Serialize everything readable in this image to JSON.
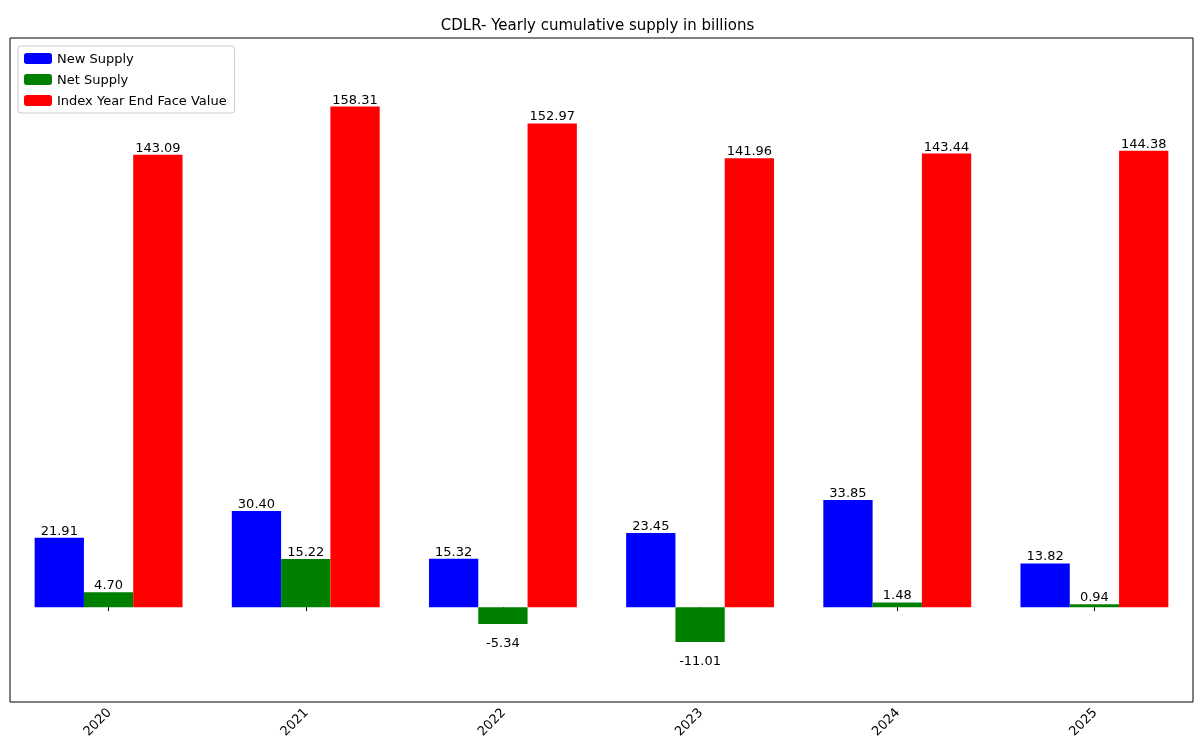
{
  "chart_data": {
    "type": "bar",
    "title": "CDLR- Yearly cumulative supply in billions",
    "categories": [
      "2020",
      "2021",
      "2022",
      "2023",
      "2024",
      "2025"
    ],
    "series": [
      {
        "name": "New Supply",
        "color": "#0000ff",
        "values": [
          21.91,
          30.4,
          15.32,
          23.45,
          33.85,
          13.82
        ],
        "value_labels": [
          "21.91",
          "30.40",
          "15.32",
          "23.45",
          "33.85",
          "13.82"
        ]
      },
      {
        "name": "Net Supply",
        "color": "#008000",
        "values": [
          4.7,
          15.22,
          -5.34,
          -11.01,
          1.48,
          0.94
        ],
        "value_labels": [
          "4.70",
          "15.22",
          "-5.34",
          "-11.01",
          "1.48",
          "0.94"
        ]
      },
      {
        "name": "Index Year End Face Value",
        "color": "#ff0000",
        "values": [
          143.09,
          158.31,
          152.97,
          141.96,
          143.44,
          144.38
        ],
        "value_labels": [
          "143.09",
          "158.31",
          "152.97",
          "141.96",
          "143.44",
          "144.38"
        ]
      }
    ],
    "legend": "top left",
    "grid": false,
    "tick_labels": "x"
  }
}
